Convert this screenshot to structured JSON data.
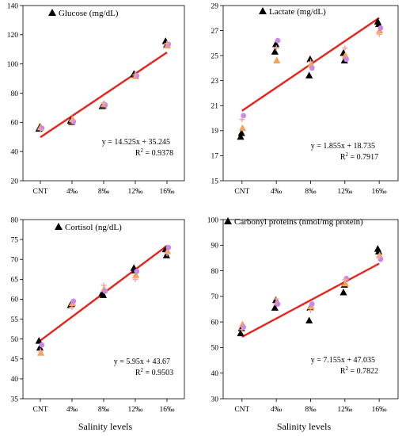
{
  "x_axis_title": "Salinity levels",
  "chart_data": [
    {
      "type": "scatter",
      "title": "Glucose (mg/dL)",
      "categories": [
        "CNT",
        "4‰",
        "8‰",
        "12‰",
        "16‰"
      ],
      "ylim": [
        20,
        140
      ],
      "yticks": [
        20,
        40,
        60,
        80,
        100,
        120,
        140
      ],
      "grid": false,
      "series": [
        {
          "marker": "triangle-black",
          "color": "#000000",
          "values": [
            55.5,
            61,
            71,
            93,
            115.5
          ]
        },
        {
          "marker": "triangle-darkbrown",
          "color": "#6b3b22",
          "values": [
            57,
            60,
            71.5,
            92.5,
            113
          ]
        },
        {
          "marker": "triangle-orange",
          "color": "#f2a35a",
          "values": [
            56.5,
            62,
            72.5,
            91.5,
            112.5
          ]
        },
        {
          "marker": "circle-violet",
          "color": "#cc88e6",
          "values": [
            56,
            60.5,
            72,
            92,
            113.5
          ]
        },
        {
          "marker": "cross-salmon",
          "color": "#f4a6a0",
          "values": [
            55,
            61.5,
            73,
            92.5,
            114
          ]
        }
      ],
      "trendline": {
        "slope": 14.525,
        "intercept": 35.245,
        "color": "#e8211b"
      },
      "equation": "y = 14.525x + 35.245",
      "r2": "R",
      "r2_value": " = 0.9378"
    },
    {
      "type": "scatter",
      "title": "Lactate (mg/dL)",
      "categories": [
        "CNT",
        "4‰",
        "8‰",
        "12‰",
        "16‰"
      ],
      "ylim": [
        15,
        29
      ],
      "yticks": [
        15,
        17,
        19,
        21,
        23,
        25,
        27,
        29
      ],
      "grid": false,
      "series": [
        {
          "marker": "triangle-black",
          "color": "#000000",
          "values": [
            18.5,
            25.3,
            23.4,
            25.2,
            27.7
          ]
        },
        {
          "marker": "triangle-black",
          "color": "#000000",
          "values": [
            18.8,
            25.9,
            24.7,
            24.6,
            27.5
          ]
        },
        {
          "marker": "triangle-orange",
          "color": "#f2a35a",
          "values": [
            19.2,
            24.6,
            24.3,
            25.0,
            27.0
          ]
        },
        {
          "marker": "circle-violet",
          "color": "#cc88e6",
          "values": [
            20.2,
            26.2,
            24.0,
            24.7,
            27.2
          ]
        },
        {
          "marker": "cross-salmon",
          "color": "#f4a6a0",
          "values": [
            19.9,
            25.6,
            24.5,
            25.6,
            26.7
          ]
        }
      ],
      "trendline": {
        "slope": 1.855,
        "intercept": 18.735,
        "color": "#e8211b"
      },
      "equation": "y = 1.855x + 18.735",
      "r2": "R",
      "r2_value": " = 0.7917"
    },
    {
      "type": "scatter",
      "title": "Cortisol (ng/dL)",
      "categories": [
        "CNT",
        "4‰",
        "8‰",
        "12‰",
        "16‰"
      ],
      "ylim": [
        35,
        80
      ],
      "yticks": [
        35,
        40,
        45,
        50,
        55,
        60,
        65,
        70,
        75,
        80
      ],
      "grid": false,
      "series": [
        {
          "marker": "triangle-black",
          "color": "#000000",
          "values": [
            49.5,
            58.5,
            61.5,
            67.8,
            72.5
          ]
        },
        {
          "marker": "triangle-black",
          "color": "#000000",
          "values": [
            47.8,
            58.8,
            61.0,
            67.2,
            71.0
          ]
        },
        {
          "marker": "triangle-orange",
          "color": "#f2a35a",
          "values": [
            46.5,
            59.0,
            62.5,
            66.0,
            72.0
          ]
        },
        {
          "marker": "circle-violet",
          "color": "#cc88e6",
          "values": [
            48.5,
            59.5,
            62.0,
            67.0,
            73.0
          ]
        },
        {
          "marker": "cross-salmon",
          "color": "#f4a6a0",
          "values": [
            47.0,
            58.0,
            63.5,
            65.0,
            71.5
          ]
        }
      ],
      "trendline": {
        "slope": 5.95,
        "intercept": 43.67,
        "color": "#e8211b"
      },
      "equation": "y = 5.95x + 43.67",
      "r2": "R",
      "r2_value": " = 0.9503"
    },
    {
      "type": "scatter",
      "title": "Carbonyl proteins (nmol/mg protein)",
      "categories": [
        "CNT",
        "4‰",
        "8‰",
        "12‰",
        "16‰"
      ],
      "ylim": [
        30,
        100
      ],
      "yticks": [
        30,
        40,
        50,
        60,
        70,
        80,
        90,
        100
      ],
      "grid": false,
      "series": [
        {
          "marker": "triangle-black",
          "color": "#000000",
          "values": [
            55.5,
            65.5,
            60.5,
            71.5,
            88.5
          ]
        },
        {
          "marker": "triangle-black",
          "color": "#000000",
          "values": [
            57.5,
            68.5,
            65.5,
            74.5,
            87.5
          ]
        },
        {
          "marker": "triangle-orange",
          "color": "#f2a35a",
          "values": [
            59.0,
            67.5,
            66.0,
            75.0,
            86.0
          ]
        },
        {
          "marker": "circle-violet",
          "color": "#cc88e6",
          "values": [
            58.0,
            67.0,
            67.0,
            77.0,
            84.5
          ]
        },
        {
          "marker": "cross-salmon",
          "color": "#f4a6a0",
          "values": [
            57.0,
            69.0,
            64.5,
            76.5,
            85.5
          ]
        }
      ],
      "trendline": {
        "slope": 7.155,
        "intercept": 47.035,
        "color": "#e8211b"
      },
      "equation": "y = 7.155x + 47.035",
      "r2": "R",
      "r2_value": " = 0.7822"
    }
  ]
}
